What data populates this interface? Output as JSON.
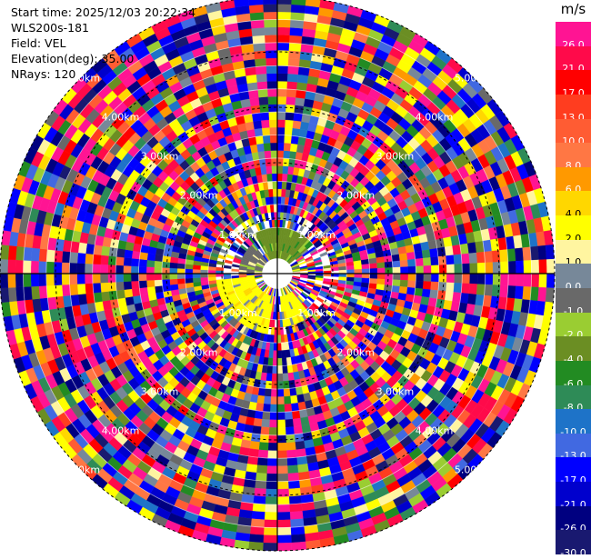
{
  "info": {
    "start_time": "Start time: 2025/12/03 20:22:34",
    "site": "WLS200s-181",
    "field": "Field: VEL",
    "elevation": "Elevation(deg): 35.00",
    "nrays": "NRays: 120"
  },
  "colorbar": {
    "unit": "m/s",
    "levels": [
      {
        "label": "26.0",
        "color": "#ff1493"
      },
      {
        "label": "21.0",
        "color": "#ff0a4a"
      },
      {
        "label": "17.0",
        "color": "#ff0000"
      },
      {
        "label": "13.0",
        "color": "#ff3d1f"
      },
      {
        "label": "10.0",
        "color": "#ff5c33"
      },
      {
        "label": "8.0",
        "color": "#ff7744"
      },
      {
        "label": "6.0",
        "color": "#ff9900"
      },
      {
        "label": "4.0",
        "color": "#ffd700"
      },
      {
        "label": "2.0",
        "color": "#ffff00"
      },
      {
        "label": "1.0",
        "color": "#fff5a0"
      },
      {
        "label": "0.0",
        "color": "#778899"
      },
      {
        "label": "-1.0",
        "color": "#696969"
      },
      {
        "label": "-2.0",
        "color": "#9acd32"
      },
      {
        "label": "-4.0",
        "color": "#6b8e23"
      },
      {
        "label": "-6.0",
        "color": "#228b22"
      },
      {
        "label": "-8.0",
        "color": "#2e8b57"
      },
      {
        "label": "-10.0",
        "color": "#1e73c8"
      },
      {
        "label": "-13.0",
        "color": "#4169e1"
      },
      {
        "label": "-17.0",
        "color": "#0000ff"
      },
      {
        "label": "-21.0",
        "color": "#0000cd"
      },
      {
        "label": "-26.0",
        "color": "#000080"
      },
      {
        "label": "-30.0",
        "color": "#191970"
      }
    ]
  },
  "chart_data": {
    "type": "heatmap",
    "field": "VEL",
    "unit": "m/s",
    "elevation_deg": 35.0,
    "n_rays": 120,
    "range_rings_km": [
      1,
      2,
      3,
      4,
      5
    ],
    "ring_labels": [
      "1.00km",
      "2.00km",
      "3.00km",
      "4.00km",
      "5.00km"
    ],
    "max_range_km": 5.0,
    "grid": true,
    "near_field_patches": [
      {
        "azimuth_start_deg": 190,
        "azimuth_end_deg": 265,
        "range_km": [
          0.4,
          1.1
        ],
        "value": 2.0
      },
      {
        "azimuth_start_deg": 140,
        "azimuth_end_deg": 175,
        "range_km": [
          0.4,
          1.0
        ],
        "value": 2.0
      },
      {
        "azimuth_start_deg": 330,
        "azimuth_end_deg": 50,
        "range_km": [
          0.3,
          0.8
        ],
        "value": -4.0
      },
      {
        "azimuth_start_deg": 270,
        "azimuth_end_deg": 320,
        "range_km": [
          0.3,
          0.7
        ],
        "value": -1.0
      }
    ],
    "far_field": "noise"
  }
}
